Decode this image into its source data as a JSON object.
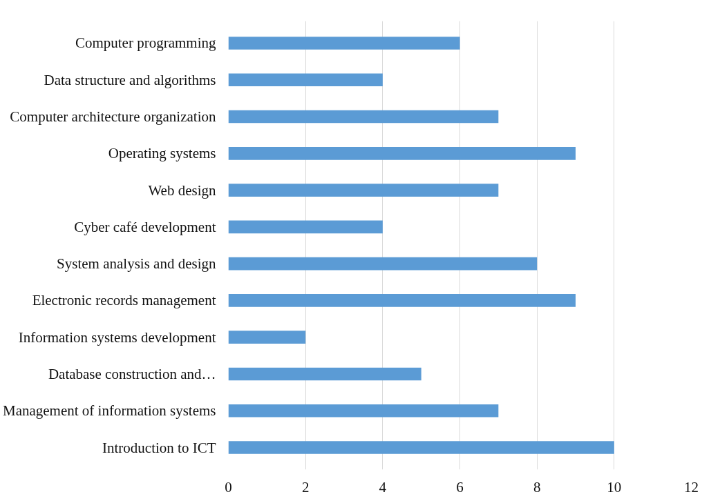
{
  "chart_data": {
    "type": "bar",
    "orientation": "horizontal",
    "categories": [
      "Computer programming",
      "Data structure and algorithms",
      "Computer architecture organization",
      "Operating systems",
      "Web design",
      "Cyber café development",
      "System analysis and design",
      "Electronic records management",
      "Information systems development",
      "Database construction and…",
      "Management of information systems",
      "Introduction to ICT"
    ],
    "values": [
      6,
      4,
      7,
      9,
      7,
      4,
      8,
      9,
      2,
      5,
      7,
      10
    ],
    "color": "#5b9bd5",
    "xlim": [
      0,
      12
    ],
    "xticks": [
      0,
      2,
      4,
      6,
      8,
      10,
      12
    ],
    "grid": "x"
  }
}
